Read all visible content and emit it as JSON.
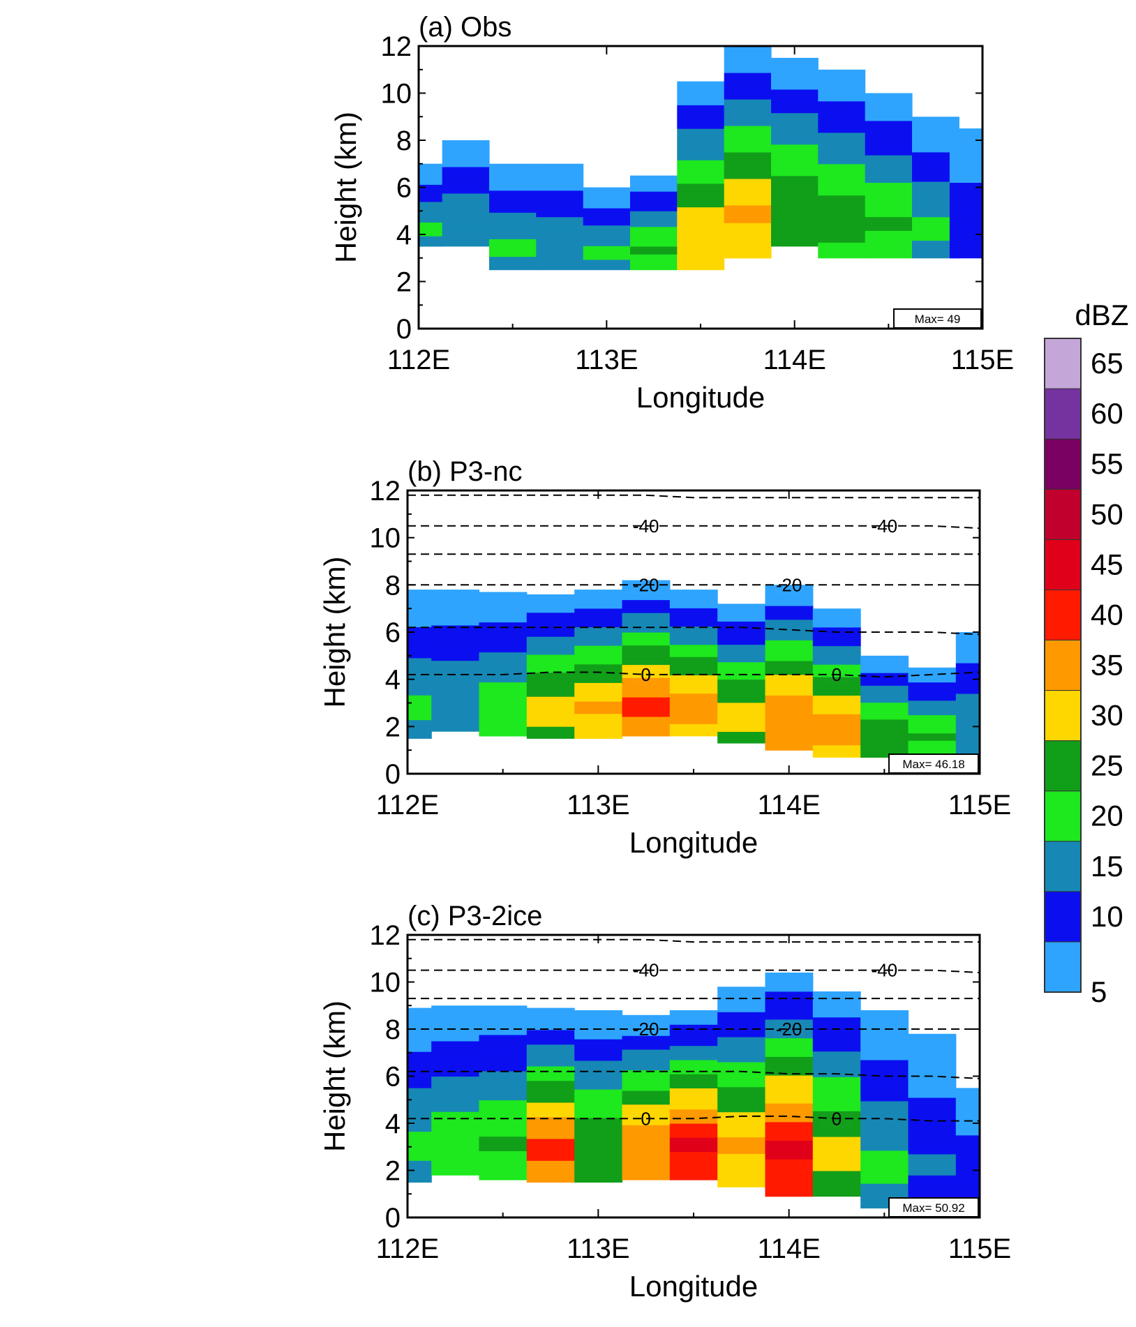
{
  "colors": {
    "levels": [
      "#2ea4ff",
      "#0b0ff0",
      "#1788b5",
      "#1ee81e",
      "#119e19",
      "#ffd700",
      "#ff9900",
      "#ff1a00",
      "#e0001a",
      "#c2002e",
      "#7a0061",
      "#7533a0",
      "#c4a7d8"
    ]
  },
  "colorbar": {
    "unit": "dBZ",
    "levels": [
      5,
      10,
      15,
      20,
      25,
      30,
      35,
      40,
      45,
      50,
      55,
      60,
      65
    ]
  },
  "chart_data": [
    {
      "type": "heatmap",
      "title": "(a) Obs",
      "xlabel": "Longitude",
      "ylabel": "Height (km)",
      "xlim": [
        112,
        115
      ],
      "ylim": [
        0,
        12
      ],
      "xticks": [
        "112E",
        "113E",
        "114E",
        "115E"
      ],
      "yticks": [
        "0",
        "2",
        "4",
        "6",
        "8",
        "10",
        "12"
      ],
      "max_label": "Max= 49",
      "max_dbz": 49,
      "temperature_contours": [],
      "columns": [
        {
          "lon": 112.0,
          "bottom": 3.5,
          "top": 7.0,
          "peak": 22
        },
        {
          "lon": 112.25,
          "bottom": 3.5,
          "top": 8.0,
          "peak": 20
        },
        {
          "lon": 112.5,
          "bottom": 2.5,
          "top": 7.0,
          "peak": 22
        },
        {
          "lon": 112.75,
          "bottom": 2.5,
          "top": 7.0,
          "peak": 20
        },
        {
          "lon": 113.0,
          "bottom": 2.5,
          "top": 6.0,
          "peak": 22
        },
        {
          "lon": 113.25,
          "bottom": 2.5,
          "top": 6.5,
          "peak": 26
        },
        {
          "lon": 113.5,
          "bottom": 2.5,
          "top": 10.5,
          "peak": 34
        },
        {
          "lon": 113.75,
          "bottom": 3.0,
          "top": 12.0,
          "peak": 36
        },
        {
          "lon": 114.0,
          "bottom": 3.5,
          "top": 11.5,
          "peak": 30
        },
        {
          "lon": 114.25,
          "bottom": 3.0,
          "top": 11.0,
          "peak": 28
        },
        {
          "lon": 114.5,
          "bottom": 3.0,
          "top": 10.0,
          "peak": 26
        },
        {
          "lon": 114.75,
          "bottom": 3.0,
          "top": 9.0,
          "peak": 22
        },
        {
          "lon": 114.95,
          "bottom": 3.0,
          "top": 8.5,
          "peak": 14
        }
      ]
    },
    {
      "type": "heatmap",
      "title": "(b) P3-nc",
      "xlabel": "Longitude",
      "ylabel": "Height (km)",
      "xlim": [
        112,
        115
      ],
      "ylim": [
        0,
        12
      ],
      "xticks": [
        "112E",
        "113E",
        "114E",
        "115E"
      ],
      "yticks": [
        "0",
        "2",
        "4",
        "6",
        "8",
        "10",
        "12"
      ],
      "max_label": "Max= 46.18",
      "max_dbz": 46.18,
      "temperature_contours": [
        {
          "label": "-40",
          "level": -40,
          "heights": [
            10.5,
            10.5,
            10.5,
            10.5,
            10.5,
            10.5,
            10.5,
            10.5,
            10.5,
            10.5,
            10.5,
            10.5,
            10.4
          ],
          "label_lons": [
            113.25,
            114.5
          ]
        },
        {
          "label": "-20",
          "level": -20,
          "heights": [
            8.0,
            8.0,
            8.0,
            8.0,
            8.0,
            8.0,
            8.0,
            8.0,
            8.0,
            8.0,
            8.0,
            8.0,
            8.0
          ],
          "label_lons": [
            113.25,
            114.0
          ]
        },
        {
          "label": "0",
          "level": 0,
          "heights": [
            4.2,
            4.2,
            4.2,
            4.3,
            4.3,
            4.2,
            4.2,
            4.2,
            4.2,
            4.2,
            4.1,
            4.2,
            4.3
          ],
          "label_lons": [
            113.25,
            114.25
          ]
        },
        {
          "label": "",
          "level": -10,
          "heights": [
            6.2,
            6.2,
            6.2,
            6.2,
            6.2,
            6.2,
            6.2,
            6.2,
            6.1,
            6.0,
            6.0,
            6.0,
            5.9
          ],
          "label_lons": []
        },
        {
          "label": "",
          "level": -60,
          "heights": [
            11.8,
            11.8,
            11.8,
            11.8,
            11.8,
            11.8,
            11.7,
            11.7,
            11.7,
            11.7,
            11.7,
            11.7,
            11.7
          ],
          "label_lons": []
        },
        {
          "label": "",
          "level": -50,
          "heights": [
            9.3,
            9.3,
            9.3,
            9.3,
            9.3,
            9.3,
            9.3,
            9.3,
            9.3,
            9.3,
            9.3,
            9.3,
            9.3
          ],
          "label_lons": []
        }
      ],
      "columns": [
        {
          "lon": 112.0,
          "bottom": 1.5,
          "top": 7.8,
          "peak": 22
        },
        {
          "lon": 112.25,
          "bottom": 1.8,
          "top": 7.8,
          "peak": 20
        },
        {
          "lon": 112.5,
          "bottom": 1.6,
          "top": 7.7,
          "peak": 24
        },
        {
          "lon": 112.75,
          "bottom": 1.5,
          "top": 7.6,
          "peak": 33
        },
        {
          "lon": 113.0,
          "bottom": 1.5,
          "top": 7.8,
          "peak": 36
        },
        {
          "lon": 113.25,
          "bottom": 1.6,
          "top": 8.2,
          "peak": 42
        },
        {
          "lon": 113.5,
          "bottom": 1.6,
          "top": 7.8,
          "peak": 38
        },
        {
          "lon": 113.75,
          "bottom": 1.3,
          "top": 7.2,
          "peak": 33
        },
        {
          "lon": 114.0,
          "bottom": 1.0,
          "top": 8.0,
          "peak": 40
        },
        {
          "lon": 114.25,
          "bottom": 0.7,
          "top": 7.0,
          "peak": 38
        },
        {
          "lon": 114.5,
          "bottom": 0.7,
          "top": 5.0,
          "peak": 30
        },
        {
          "lon": 114.75,
          "bottom": 0.8,
          "top": 4.5,
          "peak": 26
        },
        {
          "lon": 115.0,
          "bottom": 0.8,
          "top": 6.0,
          "peak": 20
        }
      ]
    },
    {
      "type": "heatmap",
      "title": "(c) P3-2ice",
      "xlabel": "Longitude",
      "ylabel": "Height (km)",
      "xlim": [
        112,
        115
      ],
      "ylim": [
        0,
        12
      ],
      "xticks": [
        "112E",
        "113E",
        "114E",
        "115E"
      ],
      "yticks": [
        "0",
        "2",
        "4",
        "6",
        "8",
        "10",
        "12"
      ],
      "max_label": "Max= 50.92",
      "max_dbz": 50.92,
      "temperature_contours": [
        {
          "label": "-40",
          "level": -40,
          "heights": [
            10.5,
            10.5,
            10.5,
            10.5,
            10.5,
            10.5,
            10.5,
            10.5,
            10.5,
            10.5,
            10.5,
            10.5,
            10.4
          ],
          "label_lons": [
            113.25,
            114.5
          ]
        },
        {
          "label": "-20",
          "level": -20,
          "heights": [
            8.0,
            8.0,
            8.0,
            8.0,
            8.0,
            8.0,
            8.0,
            8.0,
            8.0,
            8.0,
            8.0,
            8.0,
            8.0
          ],
          "label_lons": [
            113.25,
            114.0
          ]
        },
        {
          "label": "0",
          "level": 0,
          "heights": [
            4.2,
            4.2,
            4.2,
            4.2,
            4.2,
            4.2,
            4.2,
            4.3,
            4.3,
            4.2,
            4.2,
            4.1,
            4.1
          ],
          "label_lons": [
            113.25,
            114.25
          ]
        },
        {
          "label": "",
          "level": -10,
          "heights": [
            6.2,
            6.2,
            6.2,
            6.2,
            6.2,
            6.2,
            6.2,
            6.2,
            6.1,
            6.1,
            6.0,
            6.0,
            5.9
          ],
          "label_lons": []
        },
        {
          "label": "",
          "level": -60,
          "heights": [
            11.8,
            11.8,
            11.8,
            11.8,
            11.8,
            11.8,
            11.7,
            11.7,
            11.7,
            11.7,
            11.7,
            11.7,
            11.7
          ],
          "label_lons": []
        },
        {
          "label": "",
          "level": -50,
          "heights": [
            9.3,
            9.3,
            9.3,
            9.3,
            9.3,
            9.3,
            9.3,
            9.3,
            9.3,
            9.3,
            9.3,
            9.3,
            9.3
          ],
          "label_lons": []
        }
      ],
      "columns": [
        {
          "lon": 112.0,
          "bottom": 1.5,
          "top": 8.9,
          "peak": 22
        },
        {
          "lon": 112.25,
          "bottom": 1.8,
          "top": 9.0,
          "peak": 24
        },
        {
          "lon": 112.5,
          "bottom": 1.6,
          "top": 9.0,
          "peak": 26
        },
        {
          "lon": 112.75,
          "bottom": 1.5,
          "top": 8.9,
          "peak": 42
        },
        {
          "lon": 113.0,
          "bottom": 1.5,
          "top": 8.8,
          "peak": 30
        },
        {
          "lon": 113.25,
          "bottom": 1.6,
          "top": 8.6,
          "peak": 40
        },
        {
          "lon": 113.5,
          "bottom": 1.6,
          "top": 8.8,
          "peak": 46
        },
        {
          "lon": 113.75,
          "bottom": 1.3,
          "top": 9.8,
          "peak": 36
        },
        {
          "lon": 114.0,
          "bottom": 0.9,
          "top": 10.4,
          "peak": 46
        },
        {
          "lon": 114.25,
          "bottom": 0.9,
          "top": 9.6,
          "peak": 32
        },
        {
          "lon": 114.5,
          "bottom": 0.4,
          "top": 8.8,
          "peak": 22
        },
        {
          "lon": 114.75,
          "bottom": 0.6,
          "top": 7.8,
          "peak": 16
        },
        {
          "lon": 115.0,
          "bottom": 0.7,
          "top": 5.5,
          "peak": 14
        }
      ]
    }
  ]
}
